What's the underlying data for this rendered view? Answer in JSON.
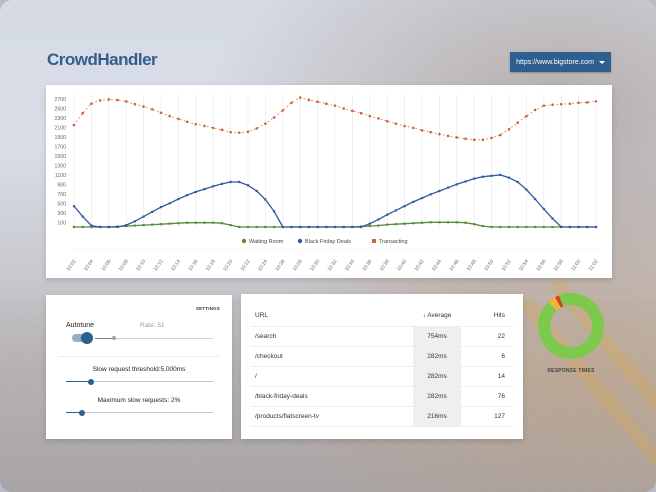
{
  "header": {
    "logo": "CrowdHandler",
    "site_selector": {
      "selected": "https://www.bigstore.com",
      "icon": "caret-down-icon"
    }
  },
  "chart_data": {
    "type": "line",
    "title": "",
    "xlabel": "",
    "ylabel": "",
    "ylim": [
      0,
      2700
    ],
    "y_ticks": [
      100,
      300,
      500,
      700,
      900,
      1100,
      1300,
      1500,
      1700,
      1900,
      2100,
      2300,
      2500,
      2700
    ],
    "x_tick_labels": [
      "10:02",
      "10:04",
      "10:06",
      "10:08",
      "10:10",
      "10:12",
      "10:14",
      "10:16",
      "10:18",
      "10:20",
      "10:22",
      "10:24",
      "10:26",
      "10:28",
      "10:30",
      "10:32",
      "10:34",
      "10:36",
      "10:38",
      "10:40",
      "10:42",
      "10:44",
      "10:46",
      "10:48",
      "10:50",
      "10:52",
      "10:54",
      "10:56",
      "10:58",
      "11:00",
      "11:02"
    ],
    "grid": "vertical",
    "legend_position": "bottom-right",
    "series": [
      {
        "name": "Waiting Room",
        "color": "#5a8a3a",
        "style": "solid",
        "values": [
          0,
          0,
          0,
          0,
          0,
          10,
          20,
          30,
          40,
          50,
          60,
          70,
          80,
          90,
          90,
          90,
          90,
          80,
          40,
          0,
          0,
          0,
          0,
          0,
          0,
          0,
          0,
          0,
          0,
          0,
          0,
          0,
          0,
          10,
          20,
          30,
          50,
          60,
          70,
          80,
          90,
          100,
          100,
          100,
          100,
          90,
          60,
          20,
          0,
          0,
          0,
          0,
          0,
          0,
          0,
          0,
          0,
          0,
          0,
          0,
          0
        ]
      },
      {
        "name": "Black Friday Deals",
        "color": "#2f5a9e",
        "style": "solid",
        "values": [
          440,
          220,
          30,
          0,
          0,
          0,
          40,
          120,
          220,
          320,
          420,
          500,
          590,
          670,
          740,
          800,
          860,
          910,
          950,
          950,
          880,
          760,
          580,
          330,
          0,
          0,
          0,
          0,
          0,
          0,
          0,
          0,
          0,
          0,
          70,
          160,
          260,
          350,
          440,
          530,
          610,
          690,
          760,
          830,
          900,
          960,
          1020,
          1060,
          1080,
          1100,
          1040,
          950,
          790,
          590,
          380,
          180,
          0,
          0,
          0,
          0,
          0
        ]
      },
      {
        "name": "Transacting",
        "color": "#d4603a",
        "style": "dotted",
        "values": [
          2150,
          2400,
          2600,
          2670,
          2690,
          2680,
          2650,
          2590,
          2540,
          2480,
          2410,
          2340,
          2280,
          2220,
          2170,
          2130,
          2090,
          2050,
          2000,
          1990,
          2010,
          2080,
          2180,
          2310,
          2460,
          2620,
          2730,
          2680,
          2640,
          2600,
          2560,
          2500,
          2450,
          2400,
          2340,
          2290,
          2230,
          2180,
          2130,
          2090,
          2040,
          2000,
          1960,
          1920,
          1890,
          1860,
          1840,
          1840,
          1880,
          1940,
          2060,
          2200,
          2340,
          2470,
          2560,
          2580,
          2590,
          2600,
          2620,
          2630,
          2650
        ]
      }
    ]
  },
  "settings": {
    "title": "SETTINGS",
    "autotune_label": "Autotune",
    "autotune_on": true,
    "rate_label": "Rate: 51",
    "threshold_label": "Slow request threshold:5,000ms",
    "threshold_position_pct": 17,
    "max_slow_label": "Maximum slow requests: 2%",
    "max_slow_position_pct": 11
  },
  "url_table": {
    "columns": {
      "url": "URL",
      "sort_icon": "↓",
      "average": "Average",
      "hits": "Hits"
    },
    "rows": [
      {
        "url": "/search",
        "average": "754ms",
        "hits": "22"
      },
      {
        "url": "/checkout",
        "average": "282ms",
        "hits": "6"
      },
      {
        "url": "/",
        "average": "282ms",
        "hits": "14"
      },
      {
        "url": "/black-friday-deals",
        "average": "282ms",
        "hits": "76"
      },
      {
        "url": "/products/flatscreen-tv",
        "average": "216ms",
        "hits": "127"
      }
    ]
  },
  "response_times": {
    "label": "RESPONSE TIMES",
    "segments": [
      {
        "name": "fast",
        "color": "#7dc94e",
        "pct": 94
      },
      {
        "name": "medium",
        "color": "#f0b33a",
        "pct": 4
      },
      {
        "name": "slow",
        "color": "#d2401e",
        "pct": 2
      }
    ]
  }
}
